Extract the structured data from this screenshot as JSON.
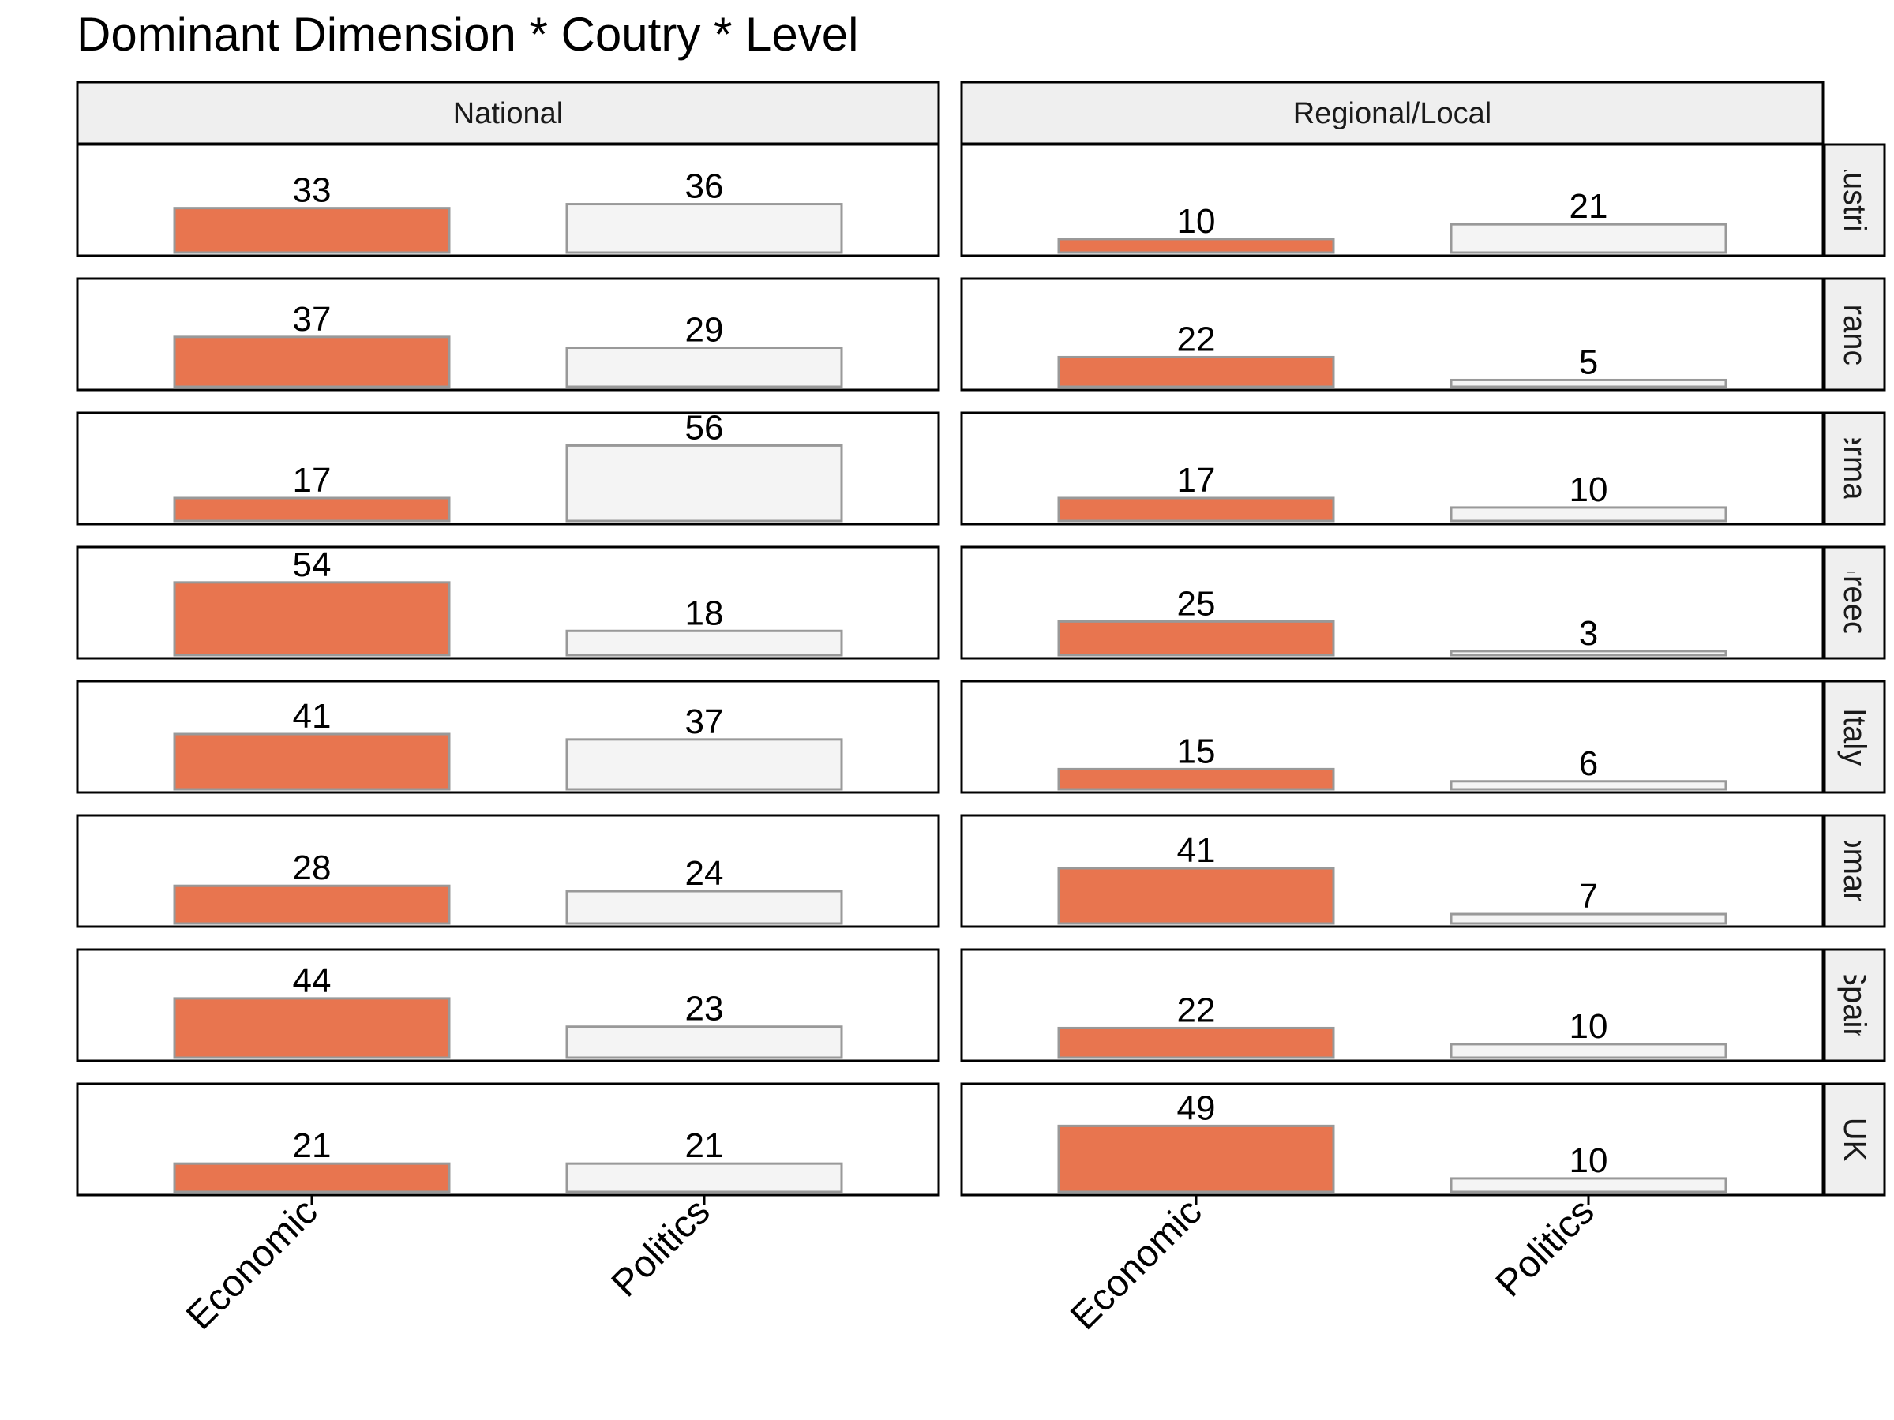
{
  "chart_data": {
    "type": "bar",
    "title": "Dominant Dimension * Coutry * Level",
    "xlabel": "",
    "ylabel": "",
    "categories": [
      "Economic",
      "Politics"
    ],
    "columns": [
      "National",
      "Regional/Local"
    ],
    "rows": [
      "Austria",
      "France",
      "Germany",
      "Greece",
      "Italy",
      "Romania",
      "Spain",
      "UK"
    ],
    "ylim": [
      0,
      65
    ],
    "colors": {
      "Economic": "#E8754F",
      "Politics": "#F4F4F4",
      "bar_outline": "#999999",
      "strip_fill": "#EFEFEF"
    },
    "values": {
      "National": {
        "Austria": [
          33,
          36
        ],
        "France": [
          37,
          29
        ],
        "Germany": [
          17,
          56
        ],
        "Greece": [
          54,
          18
        ],
        "Italy": [
          41,
          37
        ],
        "Romania": [
          28,
          24
        ],
        "Spain": [
          44,
          23
        ],
        "UK": [
          21,
          21
        ]
      },
      "Regional/Local": {
        "Austria": [
          10,
          21
        ],
        "France": [
          22,
          5
        ],
        "Germany": [
          17,
          10
        ],
        "Greece": [
          25,
          3
        ],
        "Italy": [
          15,
          6
        ],
        "Romania": [
          41,
          7
        ],
        "Spain": [
          22,
          10
        ],
        "UK": [
          49,
          10
        ]
      }
    }
  }
}
